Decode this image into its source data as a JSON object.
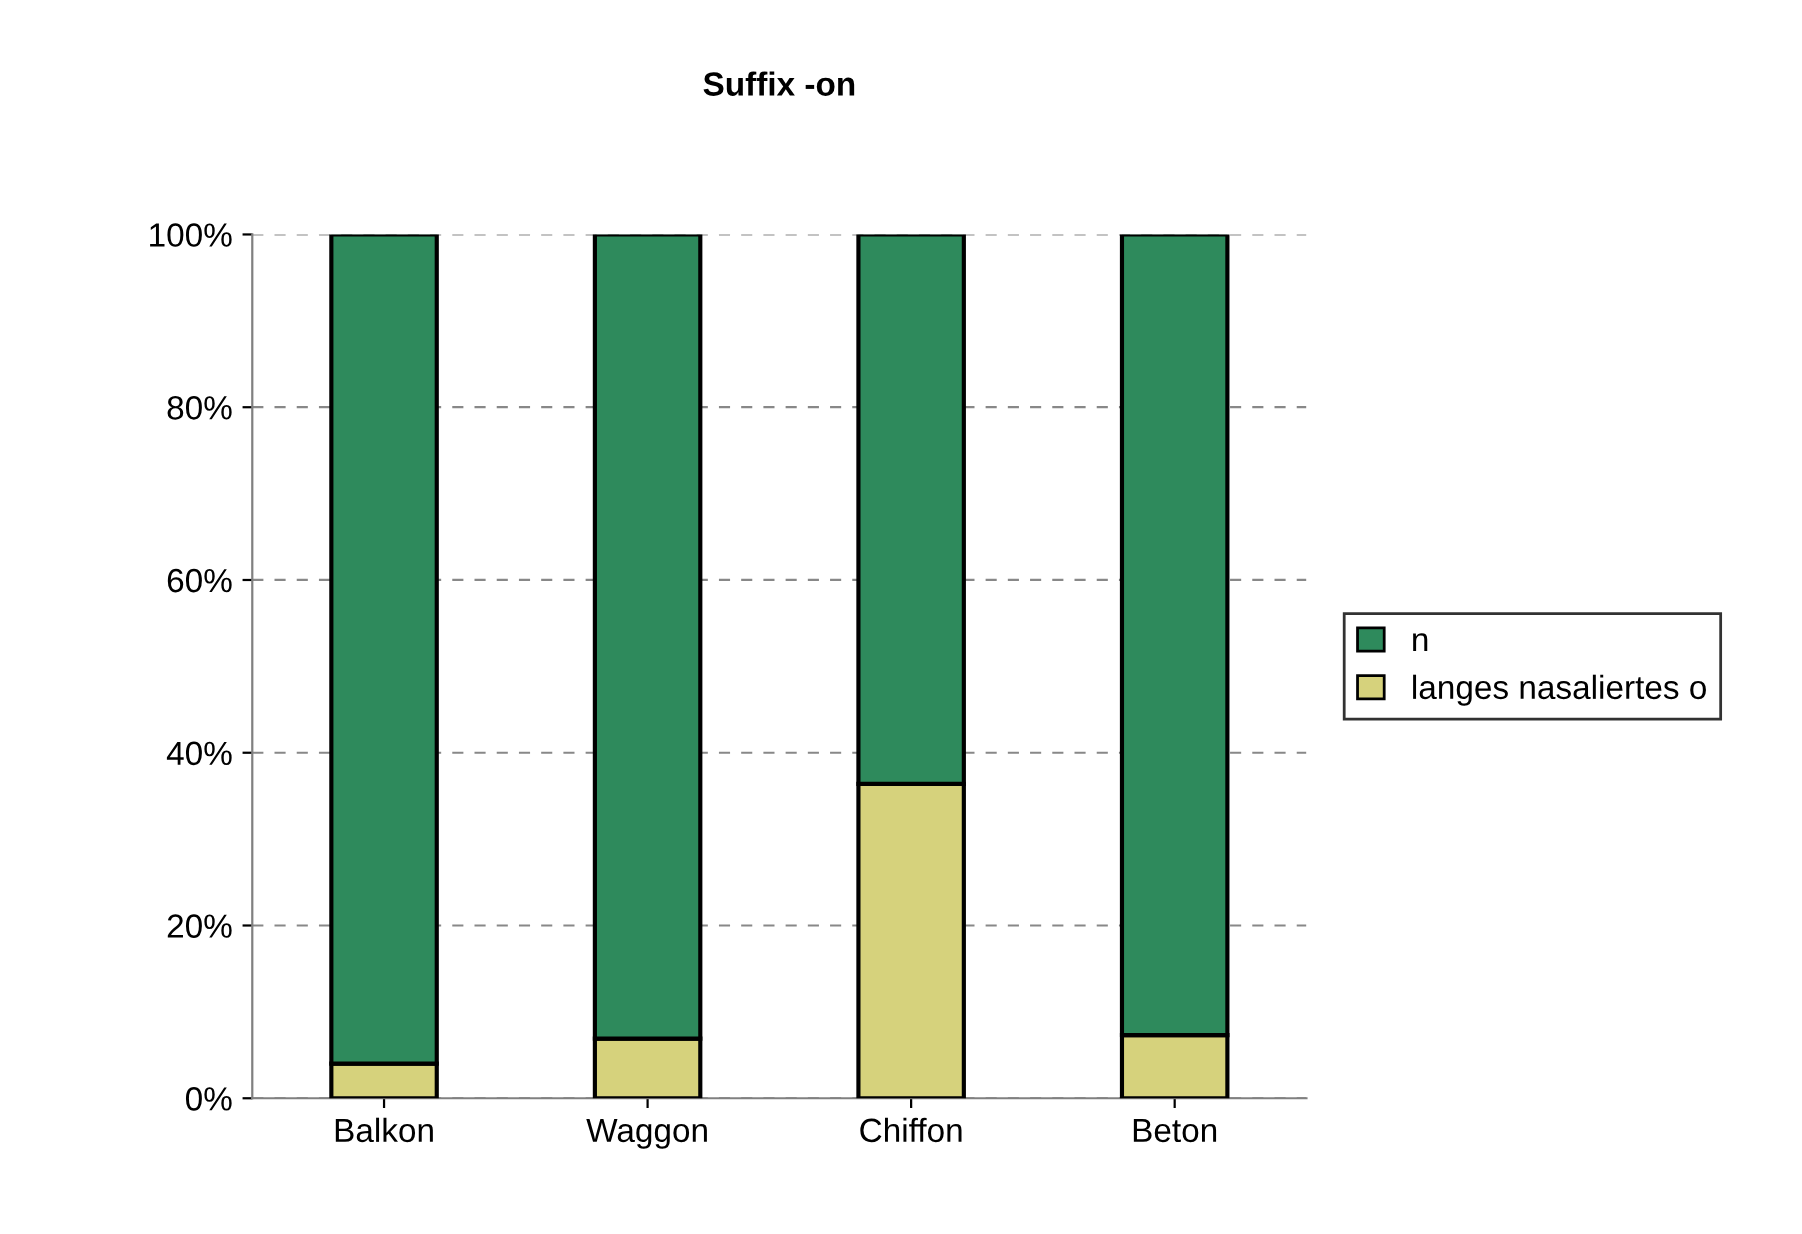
{
  "chart_data": {
    "type": "bar",
    "title": "Suffix -on",
    "stacked": true,
    "categories": [
      "Balkon",
      "Waggon",
      "Chiffon",
      "Beton"
    ],
    "series": [
      {
        "name": "langes nasaliertes o",
        "color": "#d6d27c",
        "values": [
          4.0,
          6.9,
          36.4,
          7.3
        ]
      },
      {
        "name": "n",
        "color": "#2e8a5c",
        "values": [
          96.0,
          93.1,
          63.6,
          92.7
        ]
      }
    ],
    "ylim": [
      0,
      100
    ],
    "yticks": [
      {
        "value": 0,
        "label": "0%"
      },
      {
        "value": 20,
        "label": "20%"
      },
      {
        "value": 40,
        "label": "40%"
      },
      {
        "value": 60,
        "label": "60%"
      },
      {
        "value": 80,
        "label": "80%"
      },
      {
        "value": 100,
        "label": "100%"
      }
    ],
    "grid": "y",
    "legend": "right"
  }
}
